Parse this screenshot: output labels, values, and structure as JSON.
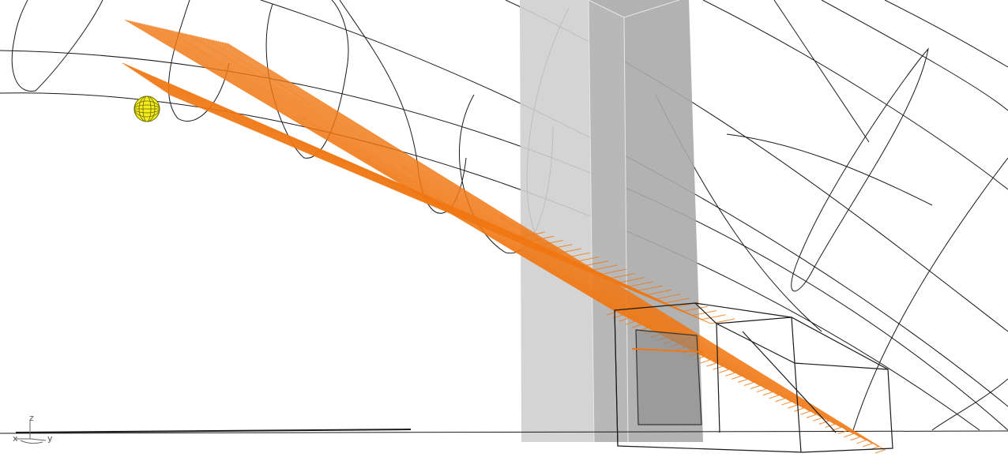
{
  "viewport": {
    "background": "#ffffff",
    "ray_color": "#f07814",
    "wire_color": "#1a1a1a",
    "panel_fill_light": "#c8c8c8",
    "panel_fill_dark": "#a0a0a0",
    "sun_color": "#e8e000",
    "sun_icon": "sun-sphere-icon"
  },
  "axis_gizmo": {
    "z_label": "z",
    "x_label": "x",
    "y_label": "y"
  }
}
